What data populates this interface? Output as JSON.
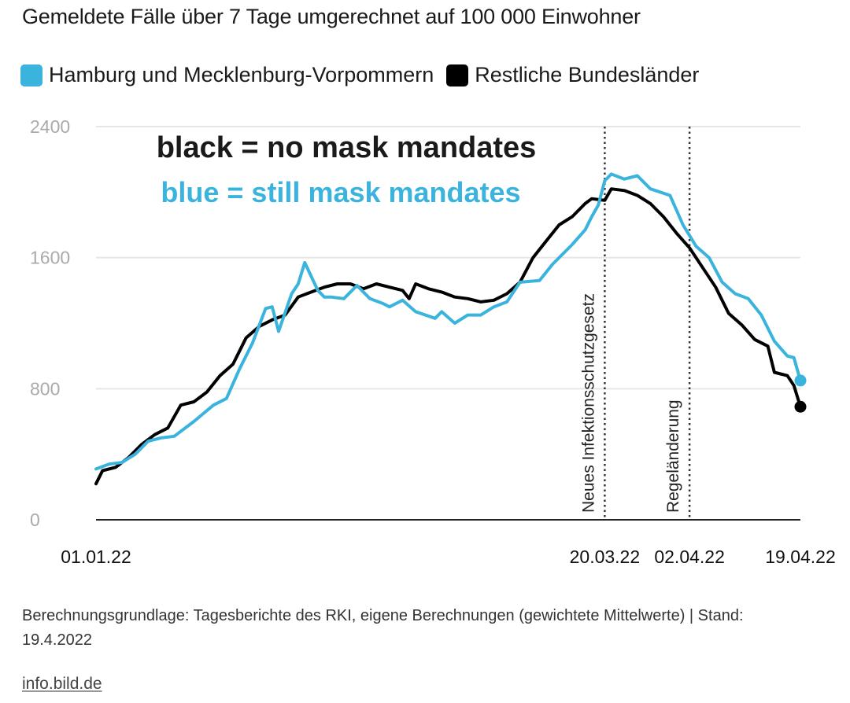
{
  "title": "Gemeldete Fälle über 7 Tage umgerechnet auf 100 000 Einwohner",
  "legend": [
    {
      "label": "Hamburg und Mecklenburg-Vorpommern",
      "color": "#3ab4dd"
    },
    {
      "label": "Restliche Bundesländer",
      "color": "#000000"
    }
  ],
  "footer": {
    "note": "Berechnungsgrundlage: Tagesberichte des RKI, eigene Berechnungen (gewichtete Mittelwerte) | Stand: 19.4.2022",
    "source": "info.bild.de"
  },
  "chart_data": {
    "type": "line",
    "ylim": [
      0,
      2400
    ],
    "yticks": [
      0,
      800,
      1600,
      2400
    ],
    "xlim": [
      "2022-01-01",
      "2022-04-19"
    ],
    "xtick_labels": [
      {
        "date": "2022-01-01",
        "label": "01.01.22"
      },
      {
        "date": "2022-03-20",
        "label": "20.03.22"
      },
      {
        "date": "2022-04-02",
        "label": "02.04.22"
      },
      {
        "date": "2022-04-19",
        "label": "19.04.22"
      }
    ],
    "grid": true,
    "legend_position": "top-left",
    "annotations": [
      {
        "text": "black = no mask mandates",
        "color": "#1a1a1a"
      },
      {
        "text": "blue = still mask mandates",
        "color": "#3ab4dd"
      }
    ],
    "vlines": [
      {
        "date": "2022-03-20",
        "label": "Neues Infektionsschutzgesetz"
      },
      {
        "date": "2022-04-02",
        "label": "Regeländerung"
      }
    ],
    "series": [
      {
        "name": "Hamburg und Mecklenburg-Vorpommern",
        "color": "#3ab4dd",
        "x": [
          "2022-01-01",
          "2022-01-03",
          "2022-01-05",
          "2022-01-07",
          "2022-01-09",
          "2022-01-11",
          "2022-01-13",
          "2022-01-16",
          "2022-01-19",
          "2022-01-21",
          "2022-01-23",
          "2022-01-25",
          "2022-01-27",
          "2022-01-28",
          "2022-01-29",
          "2022-01-31",
          "2022-02-01",
          "2022-02-02",
          "2022-02-04",
          "2022-02-05",
          "2022-02-06",
          "2022-02-08",
          "2022-02-10",
          "2022-02-12",
          "2022-02-14",
          "2022-02-15",
          "2022-02-17",
          "2022-02-19",
          "2022-02-22",
          "2022-02-23",
          "2022-02-25",
          "2022-02-27",
          "2022-03-01",
          "2022-03-03",
          "2022-03-05",
          "2022-03-07",
          "2022-03-10",
          "2022-03-12",
          "2022-03-15",
          "2022-03-17",
          "2022-03-18",
          "2022-03-19",
          "2022-03-20",
          "2022-03-21",
          "2022-03-23",
          "2022-03-25",
          "2022-03-27",
          "2022-03-30",
          "2022-04-01",
          "2022-04-03",
          "2022-04-05",
          "2022-04-07",
          "2022-04-09",
          "2022-04-11",
          "2022-04-13",
          "2022-04-15",
          "2022-04-17",
          "2022-04-18",
          "2022-04-19"
        ],
        "y": [
          310,
          340,
          350,
          400,
          480,
          500,
          510,
          600,
          700,
          740,
          920,
          1080,
          1290,
          1300,
          1150,
          1380,
          1440,
          1570,
          1400,
          1360,
          1360,
          1350,
          1430,
          1350,
          1320,
          1300,
          1340,
          1270,
          1230,
          1270,
          1200,
          1250,
          1250,
          1300,
          1330,
          1450,
          1460,
          1560,
          1680,
          1770,
          1850,
          1920,
          2070,
          2110,
          2080,
          2100,
          2020,
          1980,
          1800,
          1670,
          1600,
          1450,
          1380,
          1350,
          1250,
          1090,
          1000,
          990,
          850
        ]
      },
      {
        "name": "Restliche Bundesländer",
        "color": "#000000",
        "x": [
          "2022-01-01",
          "2022-01-02",
          "2022-01-04",
          "2022-01-06",
          "2022-01-08",
          "2022-01-10",
          "2022-01-12",
          "2022-01-14",
          "2022-01-16",
          "2022-01-18",
          "2022-01-20",
          "2022-01-22",
          "2022-01-24",
          "2022-01-26",
          "2022-01-28",
          "2022-01-30",
          "2022-02-01",
          "2022-02-03",
          "2022-02-05",
          "2022-02-07",
          "2022-02-09",
          "2022-02-11",
          "2022-02-13",
          "2022-02-15",
          "2022-02-17",
          "2022-02-18",
          "2022-02-19",
          "2022-02-21",
          "2022-02-23",
          "2022-02-25",
          "2022-02-27",
          "2022-03-01",
          "2022-03-03",
          "2022-03-05",
          "2022-03-07",
          "2022-03-09",
          "2022-03-11",
          "2022-03-13",
          "2022-03-15",
          "2022-03-17",
          "2022-03-18",
          "2022-03-20",
          "2022-03-21",
          "2022-03-23",
          "2022-03-25",
          "2022-03-27",
          "2022-03-29",
          "2022-03-31",
          "2022-04-02",
          "2022-04-04",
          "2022-04-06",
          "2022-04-08",
          "2022-04-10",
          "2022-04-12",
          "2022-04-14",
          "2022-04-15",
          "2022-04-17",
          "2022-04-18",
          "2022-04-19"
        ],
        "y": [
          220,
          300,
          320,
          380,
          460,
          520,
          560,
          700,
          720,
          780,
          880,
          950,
          1110,
          1180,
          1220,
          1250,
          1360,
          1390,
          1420,
          1440,
          1440,
          1410,
          1440,
          1420,
          1400,
          1350,
          1440,
          1410,
          1390,
          1360,
          1350,
          1330,
          1340,
          1380,
          1450,
          1600,
          1700,
          1800,
          1850,
          1930,
          1960,
          1950,
          2020,
          2010,
          1980,
          1930,
          1850,
          1750,
          1660,
          1540,
          1420,
          1260,
          1190,
          1100,
          1060,
          900,
          880,
          820,
          690
        ]
      }
    ]
  }
}
